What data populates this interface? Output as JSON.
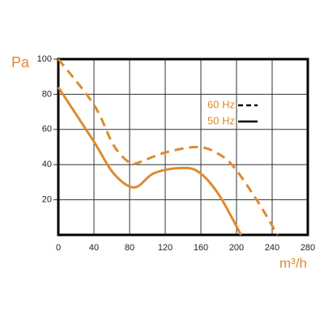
{
  "chart_data": {
    "type": "line",
    "y_label": "Pa",
    "x_label": "m³/h",
    "xlim": [
      0,
      280
    ],
    "xticks": [
      0,
      40,
      80,
      120,
      160,
      200,
      240,
      280
    ],
    "ylim": [
      0,
      100
    ],
    "yticks": [
      20,
      40,
      60,
      80,
      100
    ],
    "grid": true,
    "legend": "upper right",
    "series": [
      {
        "name": "60 Hz",
        "color": "#e08a2e",
        "dash": true,
        "x": [
          0,
          40,
          62,
          80,
          89,
          121,
          157,
          180,
          198,
          225,
          246
        ],
        "values": [
          100,
          74,
          51,
          41,
          41,
          47,
          50,
          46,
          38,
          18,
          0
        ]
      },
      {
        "name": "50 Hz",
        "color": "#e08a2e",
        "dash": false,
        "x": [
          0,
          40,
          62,
          85,
          107,
          135,
          157,
          180,
          205
        ],
        "values": [
          84,
          53,
          35,
          27,
          35,
          38,
          36,
          23,
          0
        ]
      }
    ]
  }
}
